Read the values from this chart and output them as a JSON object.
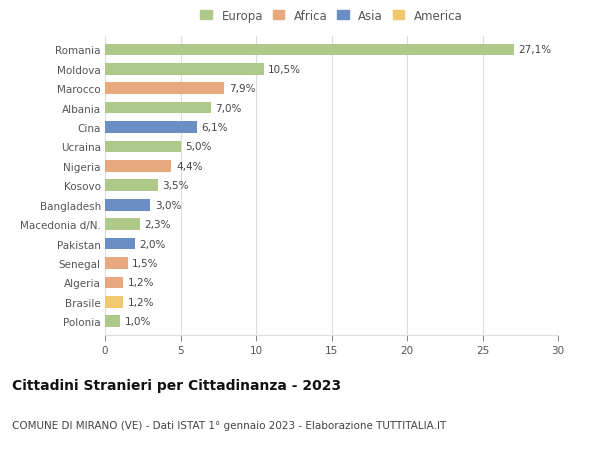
{
  "countries": [
    "Romania",
    "Moldova",
    "Marocco",
    "Albania",
    "Cina",
    "Ucraina",
    "Nigeria",
    "Kosovo",
    "Bangladesh",
    "Macedonia d/N.",
    "Pakistan",
    "Senegal",
    "Algeria",
    "Brasile",
    "Polonia"
  ],
  "values": [
    27.1,
    10.5,
    7.9,
    7.0,
    6.1,
    5.0,
    4.4,
    3.5,
    3.0,
    2.3,
    2.0,
    1.5,
    1.2,
    1.2,
    1.0
  ],
  "labels": [
    "27,1%",
    "10,5%",
    "7,9%",
    "7,0%",
    "6,1%",
    "5,0%",
    "4,4%",
    "3,5%",
    "3,0%",
    "2,3%",
    "2,0%",
    "1,5%",
    "1,2%",
    "1,2%",
    "1,0%"
  ],
  "colors": [
    "#aec98a",
    "#aec98a",
    "#e8a97e",
    "#aec98a",
    "#6b8ec4",
    "#aec98a",
    "#e8a97e",
    "#aec98a",
    "#6b8ec4",
    "#aec98a",
    "#6b8ec4",
    "#e8a97e",
    "#e8a97e",
    "#f0c96e",
    "#aec98a"
  ],
  "continents": [
    "Europa",
    "Africa",
    "Asia",
    "America"
  ],
  "continent_colors": [
    "#aec98a",
    "#e8a97e",
    "#6b8ec4",
    "#f0c96e"
  ],
  "title": "Cittadini Stranieri per Cittadinanza - 2023",
  "subtitle": "COMUNE DI MIRANO (VE) - Dati ISTAT 1° gennaio 2023 - Elaborazione TUTTITALIA.IT",
  "xlim": [
    0,
    30
  ],
  "xticks": [
    0,
    5,
    10,
    15,
    20,
    25,
    30
  ],
  "bg_color": "#ffffff",
  "grid_color": "#dddddd",
  "bar_height": 0.6,
  "label_fontsize": 7.5,
  "title_fontsize": 10,
  "subtitle_fontsize": 7.5,
  "tick_fontsize": 7.5,
  "legend_fontsize": 8.5
}
